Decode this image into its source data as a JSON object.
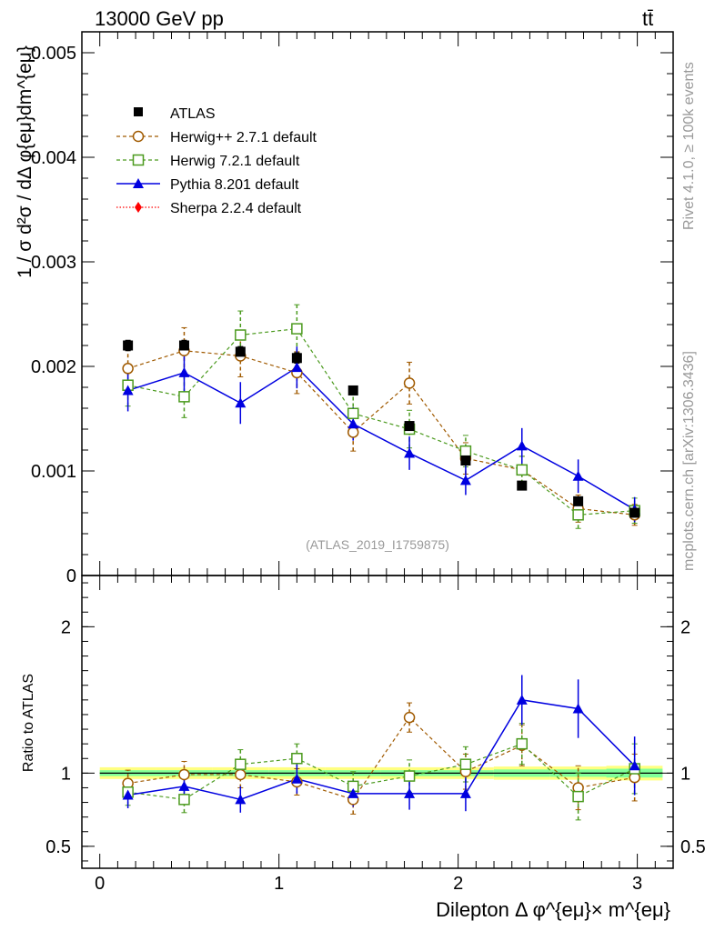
{
  "header": {
    "energy_label": "13000 GeV pp",
    "process_label": "tt̄"
  },
  "side_text": {
    "rivet": "Rivet 4.1.0, ≥ 100k events",
    "mcplots": "mcplots.cern.ch [arXiv:1306.3436]"
  },
  "analysis_id": "(ATLAS_2019_I1759875)",
  "colors": {
    "atlas": "#000000",
    "herwigpp": "#a05a00",
    "herwig7": "#4b9a1e",
    "pythia": "#0000e0",
    "sherpa": "#ff0000",
    "band_yellow": "#ffff80",
    "band_green": "#80ff99"
  },
  "chart_data": [
    {
      "type": "scatter",
      "panel": "main",
      "title": "",
      "xlabel": "",
      "ylabel": "1 / σ  d²σ / dΔ φ{eμ}dm^{eμ}",
      "ylim": [
        0,
        0.0052
      ],
      "xlim": [
        -0.1,
        3.2
      ],
      "yticks": [
        {
          "value": 0,
          "label": "0"
        },
        {
          "value": 0.001,
          "label": "0.001"
        },
        {
          "value": 0.002,
          "label": "0.002"
        },
        {
          "value": 0.003,
          "label": "0.003"
        },
        {
          "value": 0.004,
          "label": "0.004"
        },
        {
          "value": 0.005,
          "label": "0.005"
        }
      ],
      "x": [
        0.157,
        0.471,
        0.785,
        1.1,
        1.414,
        1.728,
        2.042,
        2.356,
        2.67,
        2.985
      ],
      "series": [
        {
          "name": "ATLAS",
          "key": "atlas",
          "marker": "square-filled",
          "line": "none",
          "values": [
            0.0022,
            0.0022,
            0.00214,
            0.00208,
            0.00177,
            0.00143,
            0.0011,
            0.00086,
            0.00071,
            0.0006
          ],
          "err": [
            5e-05,
            5e-05,
            5e-05,
            5e-05,
            4e-05,
            4e-05,
            3e-05,
            3e-05,
            2e-05,
            2e-05
          ]
        },
        {
          "name": "Herwig++ 2.7.1 default",
          "key": "herwigpp",
          "marker": "circle-open",
          "line": "dashed",
          "values": [
            0.00198,
            0.00215,
            0.0021,
            0.00194,
            0.00137,
            0.00184,
            0.00112,
            0.00101,
            0.00064,
            0.00058
          ],
          "err": [
            0.0002,
            0.00022,
            0.0002,
            0.0002,
            0.00018,
            0.0002,
            0.00015,
            0.00013,
            0.00013,
            0.0001
          ]
        },
        {
          "name": "Herwig 7.2.1 default",
          "key": "herwig7",
          "marker": "square-open",
          "line": "dashed",
          "values": [
            0.00182,
            0.00171,
            0.0023,
            0.00236,
            0.00155,
            0.0014,
            0.00119,
            0.00101,
            0.00058,
            0.00062
          ],
          "err": [
            0.0002,
            0.0002,
            0.00023,
            0.00023,
            0.00018,
            0.00018,
            0.00015,
            0.00013,
            0.00013,
            0.00012
          ]
        },
        {
          "name": "Pythia 8.201 default",
          "key": "pythia",
          "marker": "triangle-filled",
          "line": "solid",
          "values": [
            0.00177,
            0.00194,
            0.00165,
            0.00199,
            0.00145,
            0.00117,
            0.00091,
            0.00124,
            0.00095,
            0.00063
          ],
          "err": [
            0.0002,
            0.0002,
            0.0002,
            0.0002,
            0.00016,
            0.00016,
            0.00014,
            0.00017,
            0.00016,
            0.00012
          ]
        },
        {
          "name": "Sherpa 2.2.4 default",
          "key": "sherpa",
          "marker": "diamond-filled",
          "line": "dotted",
          "values": [],
          "err": []
        }
      ]
    },
    {
      "type": "scatter",
      "panel": "ratio",
      "ylabel": "Ratio to ATLAS",
      "xlabel": "Dilepton Δ φ^{eμ}× m^{eμ}",
      "ylim": [
        0.35,
        2.35
      ],
      "xlim": [
        -0.1,
        3.2
      ],
      "yticks": [
        {
          "value": 0.5,
          "label": "0.5"
        },
        {
          "value": 1,
          "label": "1"
        },
        {
          "value": 2,
          "label": "2"
        }
      ],
      "xticks": [
        {
          "value": 0,
          "label": "0"
        },
        {
          "value": 1,
          "label": "1"
        },
        {
          "value": 2,
          "label": "2"
        },
        {
          "value": 3,
          "label": "3"
        }
      ],
      "x": [
        0.157,
        0.471,
        0.785,
        1.1,
        1.414,
        1.728,
        2.042,
        2.356,
        2.67,
        2.985
      ],
      "band": {
        "edges": [
          0.0,
          0.314,
          0.628,
          0.942,
          1.256,
          1.57,
          1.885,
          2.199,
          2.513,
          2.827,
          3.141
        ],
        "yellow": [
          0.04,
          0.04,
          0.04,
          0.04,
          0.04,
          0.04,
          0.04,
          0.045,
          0.045,
          0.05
        ],
        "green": [
          0.02,
          0.02,
          0.02,
          0.02,
          0.02,
          0.02,
          0.02,
          0.025,
          0.025,
          0.03
        ]
      },
      "series": [
        {
          "name": "Herwig++ 2.7.1 default",
          "key": "herwigpp",
          "marker": "circle-open",
          "line": "dashed",
          "values": [
            0.93,
            0.99,
            0.99,
            0.94,
            0.82,
            1.38,
            1.01,
            1.19,
            0.9,
            0.97
          ],
          "err": [
            0.09,
            0.09,
            0.09,
            0.09,
            0.1,
            0.1,
            0.12,
            0.14,
            0.15,
            0.16
          ]
        },
        {
          "name": "Herwig 7.2.1 default",
          "key": "herwig7",
          "marker": "square-open",
          "line": "dashed",
          "values": [
            0.87,
            0.82,
            1.06,
            1.1,
            0.91,
            0.98,
            1.06,
            1.2,
            0.84,
            1.03
          ],
          "err": [
            0.09,
            0.09,
            0.1,
            0.1,
            0.1,
            0.11,
            0.12,
            0.14,
            0.16,
            0.17
          ]
        },
        {
          "name": "Pythia 8.201 default",
          "key": "pythia",
          "marker": "triangle-filled",
          "line": "solid",
          "values": [
            0.85,
            0.91,
            0.82,
            0.96,
            0.86,
            0.86,
            0.86,
            1.5,
            1.44,
            1.05
          ],
          "err": [
            0.09,
            0.09,
            0.09,
            0.1,
            0.09,
            0.11,
            0.12,
            0.17,
            0.2,
            0.2
          ]
        }
      ]
    }
  ]
}
